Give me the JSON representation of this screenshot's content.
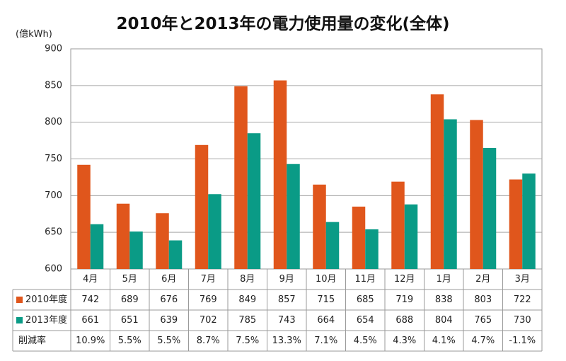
{
  "chart_data": {
    "type": "bar",
    "title": "2010年と2013年の電力使用量の変化(全体)",
    "unit_label": "(億kWh)",
    "categories": [
      "4月",
      "5月",
      "6月",
      "7月",
      "8月",
      "9月",
      "10月",
      "11月",
      "12月",
      "1月",
      "2月",
      "3月"
    ],
    "series": [
      {
        "name": "2010年度",
        "color": "#e0561c",
        "values": [
          742,
          689,
          676,
          769,
          849,
          857,
          715,
          685,
          719,
          838,
          803,
          722
        ],
        "labels": [
          "742",
          "689",
          "676",
          "769",
          "849",
          "857",
          "715",
          "685",
          "719",
          "838",
          "803",
          "722"
        ]
      },
      {
        "name": "2013年度",
        "color": "#0a9b86",
        "values": [
          661,
          651,
          639,
          702,
          785,
          743,
          664,
          654,
          688,
          804,
          765,
          730
        ],
        "labels": [
          "661",
          "651",
          "639",
          "702",
          "785",
          "743",
          "664",
          "654",
          "688",
          "804",
          "765",
          "730"
        ]
      }
    ],
    "reduction_row": {
      "label": "削減率",
      "values": [
        "10.9%",
        "5.5%",
        "5.5%",
        "8.7%",
        "7.5%",
        "13.3%",
        "7.1%",
        "4.5%",
        "4.3%",
        "4.1%",
        "4.7%",
        "-1.1%"
      ]
    },
    "ylim": [
      600,
      900
    ],
    "yticks": [
      600,
      650,
      700,
      750,
      800,
      850,
      900
    ],
    "ytick_labels": [
      "600",
      "650",
      "700",
      "750",
      "800",
      "850",
      "900"
    ],
    "grid": true
  }
}
